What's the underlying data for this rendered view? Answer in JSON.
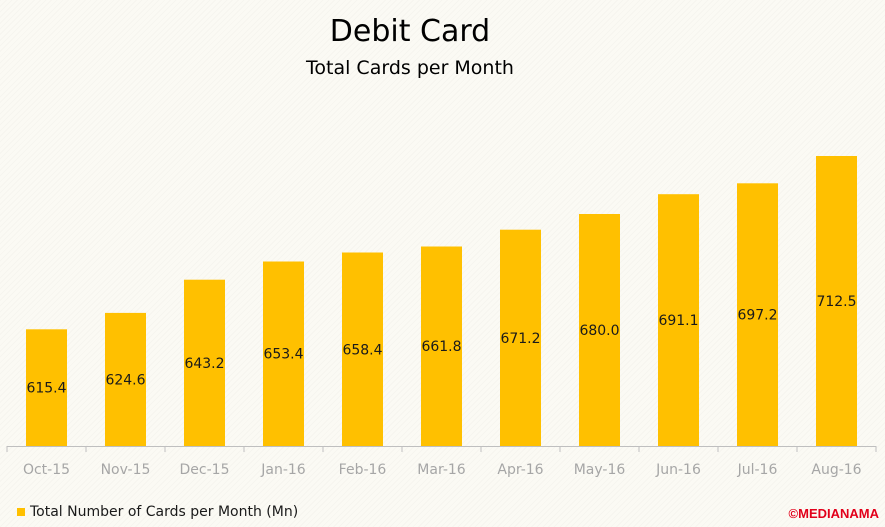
{
  "chart_data": {
    "type": "bar",
    "title": "Debit Card",
    "subtitle": "Total Cards per Month",
    "categories": [
      "Oct-15",
      "Nov-15",
      "Dec-15",
      "Jan-16",
      "Feb-16",
      "Mar-16",
      "Apr-16",
      "May-16",
      "Jun-16",
      "Jul-16",
      "Aug-16"
    ],
    "series": [
      {
        "name": "Total Number of Cards per Month (Mn)",
        "values": [
          615.4,
          624.6,
          643.2,
          653.4,
          658.4,
          661.8,
          671.2,
          680.0,
          691.1,
          697.2,
          712.5
        ],
        "labels": [
          "615.4",
          "624.6",
          "643.2",
          "653.4",
          "658.4",
          "661.8",
          "671.2",
          "680.0",
          "691.1",
          "697.2",
          "712.5"
        ]
      }
    ],
    "ylim": [
      550,
      740
    ],
    "grid": false,
    "legend": "bottom-left",
    "bar_color": "#ffc000",
    "axis_color": "#bfbfbf",
    "tick_color": "#a6a6a6"
  },
  "watermark": "©MEDIANAMA",
  "watermark_color": "#e2001a"
}
